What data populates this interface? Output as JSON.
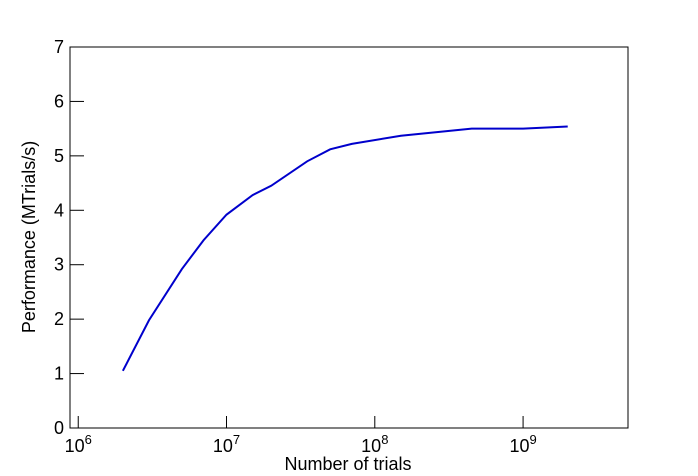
{
  "chart_data": {
    "type": "line",
    "xlabel": "Number of trials",
    "ylabel": "Performance (MTrials/s)",
    "xscale": "log",
    "xlim": [
      880000,
      5100000000
    ],
    "ylim": [
      0,
      7
    ],
    "xticks": [
      {
        "value": 1000000,
        "label": "10^6"
      },
      {
        "value": 10000000,
        "label": "10^7"
      },
      {
        "value": 100000000,
        "label": "10^8"
      },
      {
        "value": 1000000000,
        "label": "10^9"
      }
    ],
    "yticks": [
      0,
      1,
      2,
      3,
      4,
      5,
      6,
      7
    ],
    "series": [
      {
        "color": "#0000cc",
        "x": [
          2000000,
          3000000,
          5000000,
          7000000,
          10000000,
          15000000,
          20000000,
          35000000,
          50000000,
          70000000,
          150000000,
          450000000,
          1000000000,
          2000000000
        ],
        "values": [
          1.05,
          1.98,
          2.92,
          3.45,
          3.92,
          4.28,
          4.45,
          4.9,
          5.12,
          5.22,
          5.37,
          5.5,
          5.5,
          5.54
        ]
      }
    ]
  }
}
